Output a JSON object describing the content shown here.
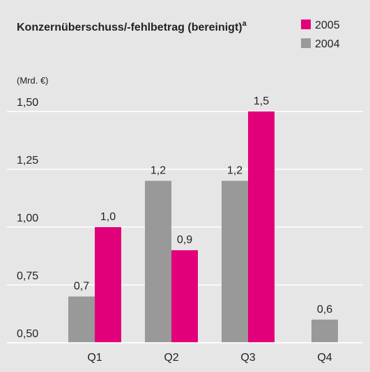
{
  "chart_data": {
    "type": "bar",
    "title": "Konzernüberschuss/-fehlbetrag (bereinigt)",
    "title_superscript": "a",
    "unit_label": "(Mrd. €)",
    "categories": [
      "Q1",
      "Q2",
      "Q3",
      "Q4"
    ],
    "series": [
      {
        "name": "2005",
        "color": "#e2007a",
        "values": [
          1.0,
          0.9,
          1.5,
          null
        ],
        "value_labels": [
          "1,0",
          "0,9",
          "1,5",
          null
        ]
      },
      {
        "name": "2004",
        "color": "#999999",
        "values": [
          0.7,
          1.2,
          1.2,
          0.6
        ],
        "value_labels": [
          "0,7",
          "1,2",
          "1,2",
          "0,6"
        ]
      }
    ],
    "bar_order": [
      1,
      0
    ],
    "ylim": [
      0.5,
      1.5
    ],
    "yticks": [
      {
        "value": 0.5,
        "label": "0,50"
      },
      {
        "value": 0.75,
        "label": "0,75"
      },
      {
        "value": 1.0,
        "label": "1,00"
      },
      {
        "value": 1.25,
        "label": "1,25"
      },
      {
        "value": 1.5,
        "label": "1,50"
      }
    ],
    "grid": true,
    "legend": "top-right"
  }
}
